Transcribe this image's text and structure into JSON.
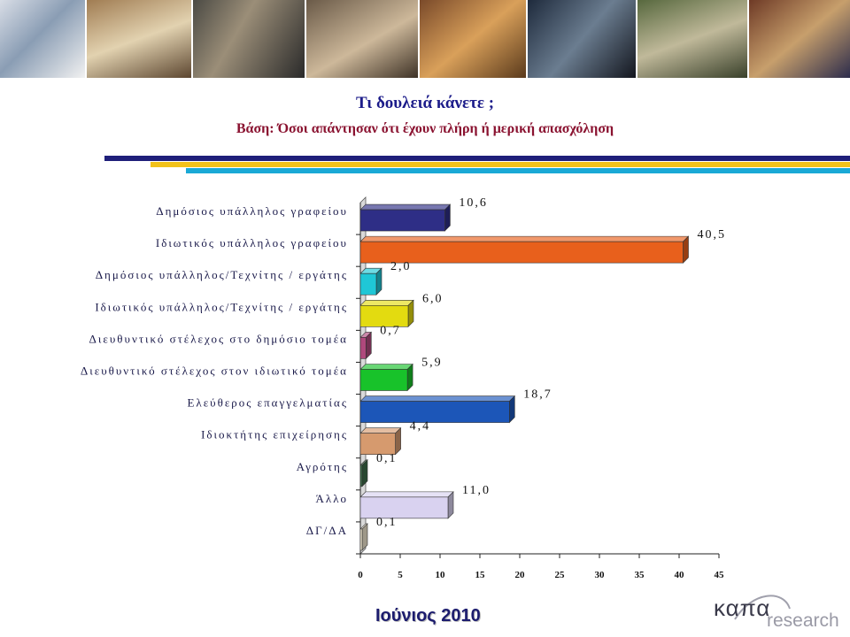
{
  "header": {
    "title": "Τι δουλειά κάνετε ;",
    "subtitle": "Βάση: Όσοι απάντησαν ότι έχουν πλήρη ή μερική απασχόληση"
  },
  "footer": {
    "date": "Ιούνιος 2010"
  },
  "logo": {
    "word1": "καπα",
    "word2": "research"
  },
  "colors": {
    "title": "#1c1c8a",
    "subtitle": "#8a1230",
    "rule_navy": "#1f1f7a",
    "rule_gold": "#f2c21a",
    "rule_cyan": "#1aa9d6"
  },
  "chart_data": {
    "type": "bar",
    "orientation": "horizontal",
    "categories": [
      "Δημόσιος υπάλληλος γραφείου",
      "Ιδιωτικός υπάλληλος γραφείου",
      "Δημόσιος υπάλληλος/Τεχνίτης / εργάτης",
      "Ιδιωτικός υπάλληλος/Τεχνίτης / εργάτης",
      "Διευθυντικό στέλεχος στο δημόσιο τομέα",
      "Διευθυντικό στέλεχος στον ιδιωτικό τομέα",
      "Ελεύθερος επαγγελματίας",
      "Ιδιοκτήτης επιχείρησης",
      "Αγρότης",
      "Άλλο",
      "ΔΓ/ΔΑ"
    ],
    "values": [
      10.6,
      40.5,
      2.0,
      6.0,
      0.7,
      5.9,
      18.7,
      4.4,
      0.1,
      11.0,
      0.1
    ],
    "value_labels": [
      "10,6",
      "40,5",
      "2,0",
      "6,0",
      "0,7",
      "5,9",
      "18,7",
      "4,4",
      "0,1",
      "11,0",
      "0,1"
    ],
    "bar_colors": [
      "#2e2e86",
      "#e8601c",
      "#1fc7d6",
      "#e3db10",
      "#b0487c",
      "#18c22a",
      "#1c56b8",
      "#d69a6e",
      "#3e6e4a",
      "#d9d2f0",
      "#f3ead2"
    ],
    "xlim": [
      0,
      45
    ],
    "xticks": [
      "0",
      "5",
      "10",
      "15",
      "20",
      "25",
      "30",
      "35",
      "40",
      "45"
    ],
    "title": "",
    "xlabel": "",
    "ylabel": "",
    "grid": false,
    "legend": "none"
  }
}
